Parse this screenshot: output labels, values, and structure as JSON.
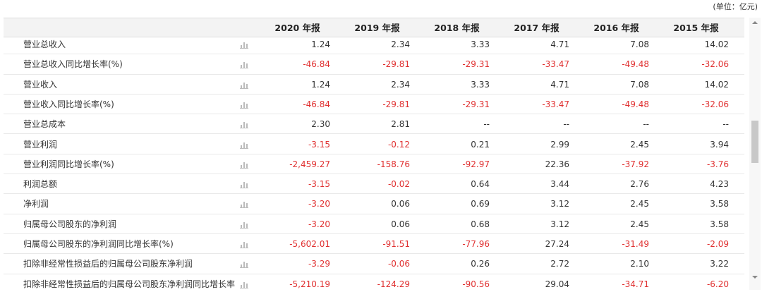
{
  "unit": "(单位：亿元)",
  "table": {
    "headers": [
      "2020 年报",
      "2019 年报",
      "2018 年报",
      "2017 年报",
      "2016 年报",
      "2015 年报"
    ],
    "rows": [
      {
        "label": "营业总收入",
        "values": [
          "1.24",
          "2.34",
          "3.33",
          "4.71",
          "7.08",
          "14.02"
        ]
      },
      {
        "label": "营业总收入同比增长率(%)",
        "values": [
          "-46.84",
          "-29.81",
          "-29.31",
          "-33.47",
          "-49.48",
          "-32.06"
        ]
      },
      {
        "label": "营业收入",
        "values": [
          "1.24",
          "2.34",
          "3.33",
          "4.71",
          "7.08",
          "14.02"
        ]
      },
      {
        "label": "营业收入同比增长率(%)",
        "values": [
          "-46.84",
          "-29.81",
          "-29.31",
          "-33.47",
          "-49.48",
          "-32.06"
        ]
      },
      {
        "label": "营业总成本",
        "values": [
          "2.30",
          "2.81",
          "--",
          "--",
          "--",
          "--"
        ]
      },
      {
        "label": "营业利润",
        "values": [
          "-3.15",
          "-0.12",
          "0.21",
          "2.99",
          "2.45",
          "3.94"
        ]
      },
      {
        "label": "营业利润同比增长率(%)",
        "values": [
          "-2,459.27",
          "-158.76",
          "-92.97",
          "22.36",
          "-37.92",
          "-3.76"
        ]
      },
      {
        "label": "利润总额",
        "values": [
          "-3.15",
          "-0.02",
          "0.64",
          "3.44",
          "2.76",
          "4.23"
        ]
      },
      {
        "label": "净利润",
        "values": [
          "-3.20",
          "0.06",
          "0.69",
          "3.12",
          "2.45",
          "3.58"
        ]
      },
      {
        "label": "归属母公司股东的净利润",
        "values": [
          "-3.20",
          "0.06",
          "0.68",
          "3.12",
          "2.45",
          "3.58"
        ]
      },
      {
        "label": "归属母公司股东的净利润同比增长率(%)",
        "values": [
          "-5,602.01",
          "-91.51",
          "-77.96",
          "27.24",
          "-31.49",
          "-2.09"
        ]
      },
      {
        "label": "扣除非经常性损益后的归属母公司股东净利润",
        "values": [
          "-3.29",
          "-0.06",
          "0.26",
          "2.72",
          "2.10",
          "3.22"
        ]
      },
      {
        "label": "扣除非经常性损益后的归属母公司股东净利润同比增长率",
        "values": [
          "-5,210.19",
          "-124.29",
          "-90.56",
          "29.04",
          "-34.71",
          "-6.20"
        ]
      }
    ]
  }
}
